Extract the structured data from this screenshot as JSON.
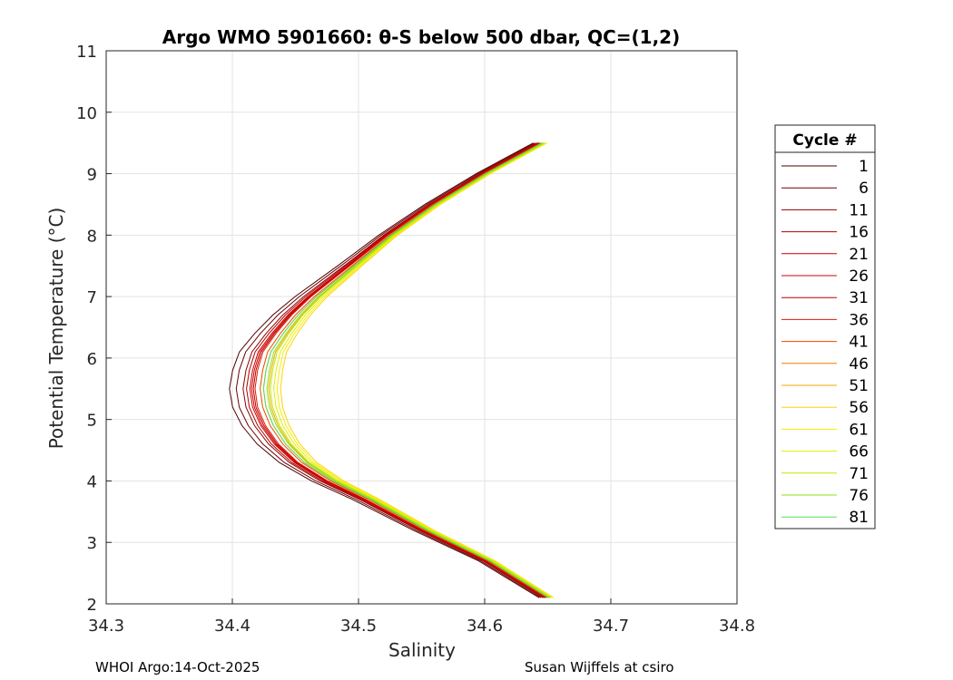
{
  "chart_data": {
    "type": "line",
    "title": "Argo WMO 5901660: θ-S below 500 dbar,  QC=(1,2)",
    "xlabel": "Salinity",
    "ylabel": "Potential Temperature (°C)",
    "xlim": [
      34.3,
      34.8
    ],
    "ylim": [
      2,
      11
    ],
    "xticks": [
      "34.3",
      "34.4",
      "34.5",
      "34.6",
      "34.7",
      "34.8"
    ],
    "yticks": [
      "2",
      "3",
      "4",
      "5",
      "6",
      "7",
      "8",
      "9",
      "10",
      "11"
    ],
    "grid": true,
    "legend": {
      "title": "Cycle #",
      "placement": "right-outside",
      "entries": [
        {
          "label": "1",
          "color": "#4d0000"
        },
        {
          "label": "6",
          "color": "#6e0000"
        },
        {
          "label": "11",
          "color": "#900000"
        },
        {
          "label": "16",
          "color": "#b00000"
        },
        {
          "label": "21",
          "color": "#c80000"
        },
        {
          "label": "26",
          "color": "#d80000"
        },
        {
          "label": "31",
          "color": "#b80000"
        },
        {
          "label": "36",
          "color": "#e21a00"
        },
        {
          "label": "41",
          "color": "#ea4a00"
        },
        {
          "label": "46",
          "color": "#f07a00"
        },
        {
          "label": "51",
          "color": "#f6a800"
        },
        {
          "label": "56",
          "color": "#ffd400"
        },
        {
          "label": "61",
          "color": "#f5ee00"
        },
        {
          "label": "66",
          "color": "#dff000"
        },
        {
          "label": "71",
          "color": "#bdec00"
        },
        {
          "label": "76",
          "color": "#8ee21a"
        },
        {
          "label": "81",
          "color": "#55e255"
        }
      ]
    },
    "series_shape": {
      "description": "Approximate theta-S profile shape shared by cycles; per-cycle salinity offsets applied",
      "theta": [
        2.1,
        2.7,
        3.2,
        3.7,
        4.0,
        4.3,
        4.6,
        4.9,
        5.2,
        5.5,
        5.8,
        6.1,
        6.4,
        6.7,
        7.0,
        7.5,
        8.0,
        8.5,
        9.0,
        9.5
      ],
      "salinity": [
        34.65,
        34.603,
        34.553,
        34.508,
        34.478,
        34.455,
        34.44,
        34.43,
        34.424,
        34.422,
        34.424,
        34.428,
        34.438,
        34.45,
        34.465,
        34.495,
        34.525,
        34.56,
        34.6,
        34.645
      ],
      "cycle_offsets": [
        -0.018,
        -0.014,
        -0.01,
        -0.008,
        -0.006,
        -0.005,
        -0.004,
        -0.003,
        0.0,
        0.002,
        0.005,
        0.012,
        0.01,
        0.008,
        0.006,
        0.004,
        0.002
      ]
    }
  },
  "footer": {
    "left": "WHOI Argo:14-Oct-2025",
    "right": "Susan Wijffels at csiro"
  }
}
